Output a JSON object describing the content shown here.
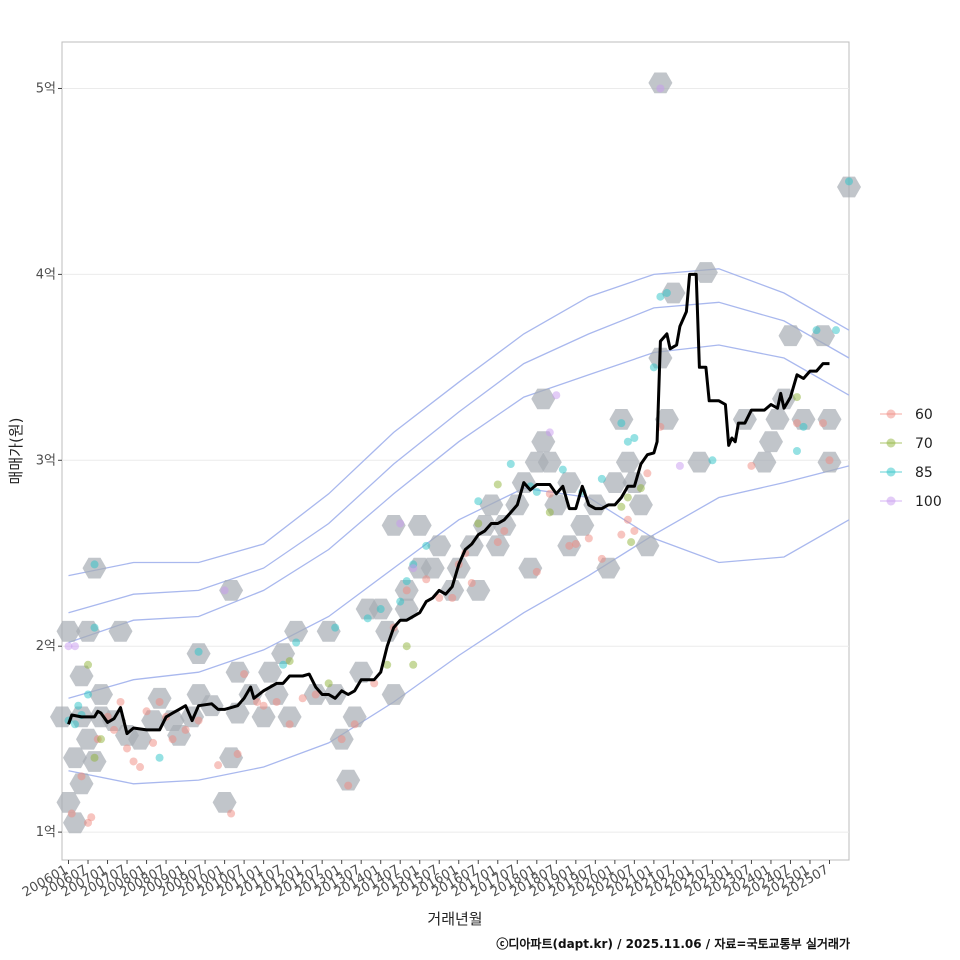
{
  "chart_data": {
    "type": "scatter",
    "xlabel": "거래년월",
    "ylabel": "매매가(원)",
    "caption": "ⓒ디아파트(dapt.kr) / 2025.11.06 / 자료=국토교통부 실거래가",
    "x_tick_labels": [
      "200601",
      "200607",
      "200701",
      "200707",
      "200801",
      "200807",
      "200901",
      "200907",
      "201001",
      "201007",
      "201101",
      "201107",
      "201201",
      "201207",
      "201301",
      "201307",
      "201401",
      "201407",
      "201501",
      "201507",
      "201601",
      "201607",
      "201701",
      "201707",
      "201801",
      "201807",
      "201901",
      "201907",
      "202001",
      "202007",
      "202101",
      "202107",
      "202201",
      "202207",
      "202301",
      "202307",
      "202401",
      "202407",
      "202501",
      "202507"
    ],
    "x_range_months": [
      -2,
      240
    ],
    "y_ticks": [
      {
        "value": 1,
        "label": "1억"
      },
      {
        "value": 2,
        "label": "2억"
      },
      {
        "value": 3,
        "label": "3억"
      },
      {
        "value": 4,
        "label": "4억"
      },
      {
        "value": 5,
        "label": "5억"
      }
    ],
    "ylim": [
      0.85,
      5.25
    ],
    "legend": {
      "position": "right",
      "items": [
        {
          "label": "60",
          "color": "#f08a80"
        },
        {
          "label": "70",
          "color": "#8fb33a"
        },
        {
          "label": "85",
          "color": "#2cc3c8"
        },
        {
          "label": "100",
          "color": "#c89af0"
        }
      ]
    },
    "colors": {
      "hex": "#a6adb4",
      "line": "#000000",
      "contour": "#a9b8ee",
      "grid": "#ebebeb"
    },
    "trend_line": [
      [
        0,
        1.58
      ],
      [
        1,
        1.63
      ],
      [
        4,
        1.62
      ],
      [
        8,
        1.62
      ],
      [
        9,
        1.65
      ],
      [
        10,
        1.64
      ],
      [
        12,
        1.59
      ],
      [
        14,
        1.61
      ],
      [
        16,
        1.67
      ],
      [
        18,
        1.53
      ],
      [
        20,
        1.56
      ],
      [
        24,
        1.55
      ],
      [
        28,
        1.55
      ],
      [
        30,
        1.62
      ],
      [
        32,
        1.64
      ],
      [
        34,
        1.66
      ],
      [
        36,
        1.68
      ],
      [
        38,
        1.6
      ],
      [
        40,
        1.68
      ],
      [
        44,
        1.69
      ],
      [
        46,
        1.66
      ],
      [
        48,
        1.66
      ],
      [
        52,
        1.68
      ],
      [
        54,
        1.72
      ],
      [
        56,
        1.78
      ],
      [
        57,
        1.72
      ],
      [
        60,
        1.76
      ],
      [
        64,
        1.8
      ],
      [
        66,
        1.8
      ],
      [
        68,
        1.84
      ],
      [
        72,
        1.84
      ],
      [
        74,
        1.85
      ],
      [
        76,
        1.78
      ],
      [
        78,
        1.74
      ],
      [
        80,
        1.74
      ],
      [
        82,
        1.72
      ],
      [
        84,
        1.76
      ],
      [
        86,
        1.74
      ],
      [
        88,
        1.76
      ],
      [
        90,
        1.82
      ],
      [
        94,
        1.82
      ],
      [
        96,
        1.86
      ],
      [
        98,
        2.0
      ],
      [
        100,
        2.1
      ],
      [
        102,
        2.14
      ],
      [
        104,
        2.14
      ],
      [
        108,
        2.18
      ],
      [
        110,
        2.24
      ],
      [
        112,
        2.26
      ],
      [
        114,
        2.3
      ],
      [
        116,
        2.28
      ],
      [
        118,
        2.32
      ],
      [
        120,
        2.44
      ],
      [
        122,
        2.52
      ],
      [
        124,
        2.55
      ],
      [
        126,
        2.6
      ],
      [
        128,
        2.62
      ],
      [
        130,
        2.66
      ],
      [
        132,
        2.66
      ],
      [
        134,
        2.68
      ],
      [
        136,
        2.72
      ],
      [
        138,
        2.76
      ],
      [
        140,
        2.88
      ],
      [
        142,
        2.84
      ],
      [
        144,
        2.87
      ],
      [
        148,
        2.87
      ],
      [
        150,
        2.82
      ],
      [
        152,
        2.86
      ],
      [
        154,
        2.74
      ],
      [
        156,
        2.74
      ],
      [
        158,
        2.86
      ],
      [
        160,
        2.76
      ],
      [
        162,
        2.74
      ],
      [
        164,
        2.74
      ],
      [
        166,
        2.76
      ],
      [
        168,
        2.76
      ],
      [
        170,
        2.8
      ],
      [
        172,
        2.86
      ],
      [
        174,
        2.86
      ],
      [
        176,
        2.98
      ],
      [
        178,
        3.03
      ],
      [
        180,
        3.04
      ],
      [
        181,
        3.1
      ],
      [
        182,
        3.64
      ],
      [
        184,
        3.68
      ],
      [
        185,
        3.6
      ],
      [
        187,
        3.62
      ],
      [
        188,
        3.72
      ],
      [
        190,
        3.8
      ],
      [
        191,
        4.0
      ],
      [
        193,
        4.0
      ],
      [
        194,
        3.5
      ],
      [
        196,
        3.5
      ],
      [
        197,
        3.32
      ],
      [
        200,
        3.32
      ],
      [
        202,
        3.3
      ],
      [
        203,
        3.08
      ],
      [
        204,
        3.12
      ],
      [
        205,
        3.1
      ],
      [
        206,
        3.2
      ],
      [
        208,
        3.2
      ],
      [
        210,
        3.27
      ],
      [
        214,
        3.27
      ],
      [
        216,
        3.3
      ],
      [
        218,
        3.28
      ],
      [
        219,
        3.36
      ],
      [
        220,
        3.28
      ],
      [
        222,
        3.34
      ],
      [
        224,
        3.46
      ],
      [
        226,
        3.44
      ],
      [
        228,
        3.48
      ],
      [
        230,
        3.48
      ],
      [
        232,
        3.52
      ],
      [
        234,
        3.52
      ]
    ],
    "hex_bins": [
      [
        0,
        2.08
      ],
      [
        6,
        2.08
      ],
      [
        -2,
        1.62
      ],
      [
        4,
        1.62
      ],
      [
        10,
        1.62
      ],
      [
        6,
        1.5
      ],
      [
        2,
        1.4
      ],
      [
        8,
        1.38
      ],
      [
        4,
        1.26
      ],
      [
        0,
        1.16
      ],
      [
        2,
        1.05
      ],
      [
        4,
        1.84
      ],
      [
        10,
        1.74
      ],
      [
        14,
        1.6
      ],
      [
        18,
        1.52
      ],
      [
        22,
        1.5
      ],
      [
        26,
        1.6
      ],
      [
        28,
        1.72
      ],
      [
        32,
        1.6
      ],
      [
        34,
        1.52
      ],
      [
        38,
        1.62
      ],
      [
        40,
        1.74
      ],
      [
        44,
        1.68
      ],
      [
        48,
        1.16
      ],
      [
        50,
        1.4
      ],
      [
        52,
        1.64
      ],
      [
        52,
        1.86
      ],
      [
        56,
        1.74
      ],
      [
        60,
        1.62
      ],
      [
        62,
        1.86
      ],
      [
        64,
        1.74
      ],
      [
        66,
        1.96
      ],
      [
        68,
        1.62
      ],
      [
        70,
        2.08
      ],
      [
        76,
        1.74
      ],
      [
        80,
        2.08
      ],
      [
        82,
        1.74
      ],
      [
        84,
        1.5
      ],
      [
        86,
        1.28
      ],
      [
        88,
        1.62
      ],
      [
        90,
        1.86
      ],
      [
        92,
        2.2
      ],
      [
        96,
        2.2
      ],
      [
        98,
        2.08
      ],
      [
        100,
        1.74
      ],
      [
        104,
        2.2
      ],
      [
        104,
        2.3
      ],
      [
        108,
        2.42
      ],
      [
        108,
        2.65
      ],
      [
        100,
        2.65
      ],
      [
        112,
        2.42
      ],
      [
        114,
        2.54
      ],
      [
        118,
        2.3
      ],
      [
        120,
        2.42
      ],
      [
        124,
        2.54
      ],
      [
        126,
        2.3
      ],
      [
        128,
        2.65
      ],
      [
        130,
        2.76
      ],
      [
        132,
        2.54
      ],
      [
        134,
        2.65
      ],
      [
        138,
        2.76
      ],
      [
        140,
        2.88
      ],
      [
        142,
        2.42
      ],
      [
        144,
        2.99
      ],
      [
        146,
        3.1
      ],
      [
        148,
        2.99
      ],
      [
        150,
        2.76
      ],
      [
        154,
        2.54
      ],
      [
        154,
        2.88
      ],
      [
        158,
        2.65
      ],
      [
        162,
        2.76
      ],
      [
        166,
        2.42
      ],
      [
        168,
        2.88
      ],
      [
        170,
        3.22
      ],
      [
        172,
        2.99
      ],
      [
        174,
        2.88
      ],
      [
        176,
        2.76
      ],
      [
        178,
        2.54
      ],
      [
        182,
        3.55
      ],
      [
        184,
        3.22
      ],
      [
        186,
        3.9
      ],
      [
        182,
        5.03
      ],
      [
        194,
        2.99
      ],
      [
        196,
        4.01
      ],
      [
        214,
        2.99
      ],
      [
        218,
        3.22
      ],
      [
        220,
        3.33
      ],
      [
        216,
        3.1
      ],
      [
        222,
        3.67
      ],
      [
        226,
        3.22
      ],
      [
        232,
        3.67
      ],
      [
        234,
        3.22
      ],
      [
        234,
        2.99
      ],
      [
        240,
        4.47
      ],
      [
        8,
        2.42
      ],
      [
        16,
        2.08
      ],
      [
        40,
        1.96
      ],
      [
        50,
        2.3
      ],
      [
        146,
        3.33
      ],
      [
        208,
        3.22
      ]
    ],
    "points_60": [
      [
        1,
        1.1
      ],
      [
        4,
        1.3
      ],
      [
        6,
        1.05
      ],
      [
        7,
        1.08
      ],
      [
        9,
        1.5
      ],
      [
        12,
        1.62
      ],
      [
        14,
        1.55
      ],
      [
        16,
        1.7
      ],
      [
        18,
        1.45
      ],
      [
        20,
        1.38
      ],
      [
        22,
        1.35
      ],
      [
        24,
        1.65
      ],
      [
        26,
        1.48
      ],
      [
        28,
        1.7
      ],
      [
        30,
        1.62
      ],
      [
        32,
        1.5
      ],
      [
        36,
        1.55
      ],
      [
        40,
        1.6
      ],
      [
        46,
        1.36
      ],
      [
        50,
        1.1
      ],
      [
        52,
        1.42
      ],
      [
        54,
        1.85
      ],
      [
        58,
        1.7
      ],
      [
        60,
        1.68
      ],
      [
        64,
        1.7
      ],
      [
        68,
        1.58
      ],
      [
        72,
        1.72
      ],
      [
        76,
        1.74
      ],
      [
        84,
        1.5
      ],
      [
        86,
        1.25
      ],
      [
        88,
        1.58
      ],
      [
        94,
        1.8
      ],
      [
        100,
        2.1
      ],
      [
        104,
        2.3
      ],
      [
        110,
        2.36
      ],
      [
        114,
        2.26
      ],
      [
        118,
        2.26
      ],
      [
        120,
        2.44
      ],
      [
        122,
        2.5
      ],
      [
        124,
        2.34
      ],
      [
        132,
        2.56
      ],
      [
        134,
        2.62
      ],
      [
        144,
        2.4
      ],
      [
        148,
        2.82
      ],
      [
        154,
        2.54
      ],
      [
        156,
        2.55
      ],
      [
        160,
        2.58
      ],
      [
        164,
        2.47
      ],
      [
        170,
        2.6
      ],
      [
        172,
        2.68
      ],
      [
        174,
        2.62
      ],
      [
        178,
        2.93
      ],
      [
        182,
        3.18
      ],
      [
        210,
        2.97
      ],
      [
        224,
        3.2
      ],
      [
        232,
        3.2
      ],
      [
        234,
        3.0
      ]
    ],
    "points_70": [
      [
        6,
        1.9
      ],
      [
        8,
        1.4
      ],
      [
        10,
        1.5
      ],
      [
        68,
        1.92
      ],
      [
        80,
        1.8
      ],
      [
        98,
        1.9
      ],
      [
        104,
        2.0
      ],
      [
        106,
        1.9
      ],
      [
        126,
        2.66
      ],
      [
        132,
        2.87
      ],
      [
        148,
        2.72
      ],
      [
        170,
        2.75
      ],
      [
        172,
        2.8
      ],
      [
        173,
        2.56
      ],
      [
        176,
        2.85
      ],
      [
        224,
        3.34
      ]
    ],
    "points_85": [
      [
        0,
        1.6
      ],
      [
        2,
        1.58
      ],
      [
        4,
        1.63
      ],
      [
        6,
        1.74
      ],
      [
        8,
        2.1
      ],
      [
        8,
        2.44
      ],
      [
        3,
        1.68
      ],
      [
        28,
        1.4
      ],
      [
        40,
        1.97
      ],
      [
        66,
        1.9
      ],
      [
        70,
        2.02
      ],
      [
        82,
        2.1
      ],
      [
        92,
        2.15
      ],
      [
        96,
        2.2
      ],
      [
        102,
        2.24
      ],
      [
        104,
        2.35
      ],
      [
        106,
        2.44
      ],
      [
        110,
        2.54
      ],
      [
        126,
        2.78
      ],
      [
        136,
        2.98
      ],
      [
        142,
        2.86
      ],
      [
        144,
        2.83
      ],
      [
        152,
        2.95
      ],
      [
        158,
        2.83
      ],
      [
        164,
        2.9
      ],
      [
        170,
        3.2
      ],
      [
        172,
        3.1
      ],
      [
        174,
        3.12
      ],
      [
        180,
        3.5
      ],
      [
        182,
        3.88
      ],
      [
        184,
        3.9
      ],
      [
        198,
        3.0
      ],
      [
        224,
        3.05
      ],
      [
        226,
        3.18
      ],
      [
        230,
        3.7
      ],
      [
        236,
        3.7
      ],
      [
        240,
        4.5
      ]
    ],
    "points_100": [
      [
        0,
        2.0
      ],
      [
        2,
        2.0
      ],
      [
        48,
        2.3
      ],
      [
        102,
        2.66
      ],
      [
        106,
        2.42
      ],
      [
        148,
        3.15
      ],
      [
        150,
        3.35
      ],
      [
        182,
        5.0
      ],
      [
        188,
        2.97
      ]
    ],
    "contours": [
      [
        [
          0,
          2.38
        ],
        [
          20,
          2.45
        ],
        [
          40,
          2.45
        ],
        [
          60,
          2.55
        ],
        [
          80,
          2.82
        ],
        [
          100,
          3.15
        ],
        [
          120,
          3.42
        ],
        [
          140,
          3.68
        ],
        [
          160,
          3.88
        ],
        [
          180,
          4.0
        ],
        [
          200,
          4.03
        ],
        [
          220,
          3.9
        ],
        [
          240,
          3.7
        ]
      ],
      [
        [
          0,
          2.18
        ],
        [
          20,
          2.28
        ],
        [
          40,
          2.3
        ],
        [
          60,
          2.42
        ],
        [
          80,
          2.66
        ],
        [
          100,
          2.98
        ],
        [
          120,
          3.26
        ],
        [
          140,
          3.52
        ],
        [
          160,
          3.68
        ],
        [
          180,
          3.82
        ],
        [
          200,
          3.85
        ],
        [
          220,
          3.75
        ],
        [
          240,
          3.55
        ]
      ],
      [
        [
          0,
          2.02
        ],
        [
          20,
          2.14
        ],
        [
          40,
          2.16
        ],
        [
          60,
          2.3
        ],
        [
          80,
          2.52
        ],
        [
          100,
          2.82
        ],
        [
          120,
          3.1
        ],
        [
          140,
          3.34
        ],
        [
          160,
          3.46
        ],
        [
          180,
          3.58
        ],
        [
          200,
          3.62
        ],
        [
          220,
          3.55
        ],
        [
          240,
          3.35
        ]
      ],
      [
        [
          0,
          1.72
        ],
        [
          20,
          1.82
        ],
        [
          40,
          1.86
        ],
        [
          60,
          1.98
        ],
        [
          80,
          2.16
        ],
        [
          100,
          2.42
        ],
        [
          120,
          2.68
        ],
        [
          140,
          2.85
        ],
        [
          160,
          2.8
        ],
        [
          180,
          2.58
        ],
        [
          200,
          2.45
        ],
        [
          220,
          2.48
        ],
        [
          240,
          2.68
        ]
      ],
      [
        [
          0,
          1.33
        ],
        [
          20,
          1.26
        ],
        [
          40,
          1.28
        ],
        [
          60,
          1.35
        ],
        [
          80,
          1.48
        ],
        [
          100,
          1.7
        ],
        [
          120,
          1.95
        ],
        [
          140,
          2.18
        ],
        [
          160,
          2.38
        ],
        [
          180,
          2.6
        ],
        [
          200,
          2.8
        ],
        [
          220,
          2.88
        ],
        [
          240,
          2.97
        ]
      ]
    ]
  }
}
